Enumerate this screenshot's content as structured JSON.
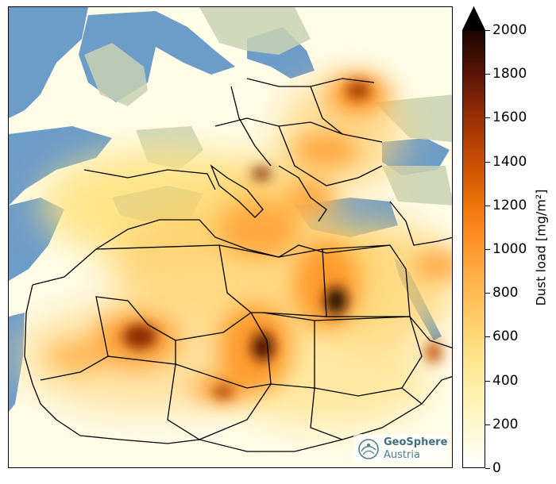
{
  "map": {
    "colorbar": {
      "label": "Dust load [mg/m²]",
      "ticks": [
        "2000",
        "1800",
        "1600",
        "1400",
        "1200",
        "1000",
        "800",
        "600",
        "400",
        "200",
        "0"
      ],
      "extend": "max",
      "colormap": [
        "#ffffff",
        "#fff4b6",
        "#ffe48c",
        "#ffd06a",
        "#ffb14a",
        "#ff9126",
        "#f07408",
        "#c94f04",
        "#9a3005",
        "#5c1506",
        "#1a0602"
      ]
    },
    "logo": {
      "line1": "GeoSphere",
      "line2": "Austria",
      "color": "#4d7f93"
    },
    "colors": {
      "sea": "#6c9cc8",
      "land_background": "#c8d2b4",
      "dust_base": "#fffce8",
      "borders": "#000000"
    }
  }
}
